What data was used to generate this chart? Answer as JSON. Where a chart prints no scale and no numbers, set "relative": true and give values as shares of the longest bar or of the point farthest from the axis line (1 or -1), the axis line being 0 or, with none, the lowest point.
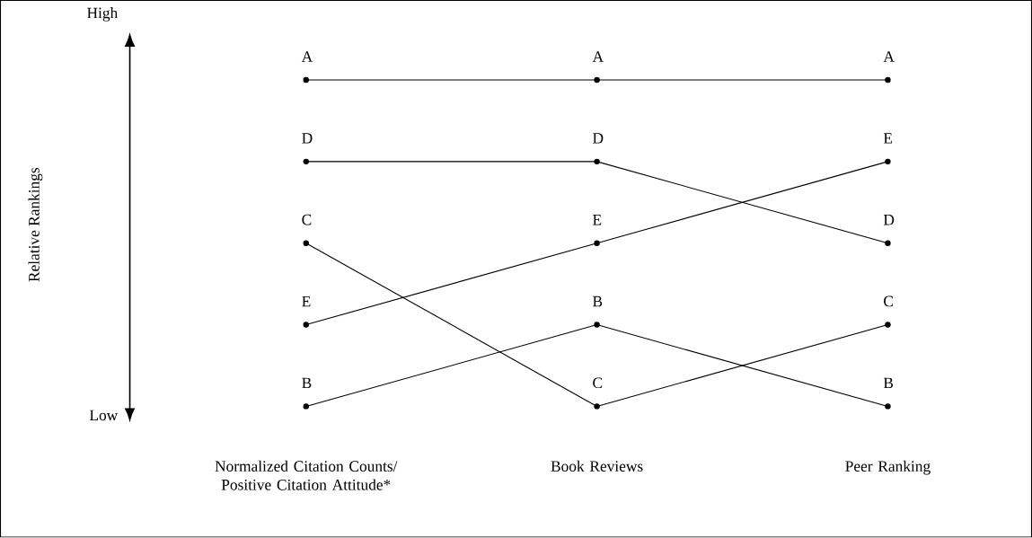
{
  "chart_data": {
    "type": "line",
    "relative": true,
    "annotations": [
      "High",
      "Low",
      "Relative Rankings"
    ],
    "categories": [
      "Normalized Citation Counts/ Positive Citation Attitude*",
      "Book Reviews",
      "Peer Ranking"
    ],
    "marker": "circle",
    "line_style": "solid",
    "series": [
      {
        "name": "A",
        "color": "#000000",
        "values": [
          1,
          1,
          1
        ]
      },
      {
        "name": "D",
        "color": "#000000",
        "values": [
          0.75,
          0.75,
          0.5
        ]
      },
      {
        "name": "C",
        "color": "#000000",
        "values": [
          0.5,
          0,
          0.25
        ]
      },
      {
        "name": "E",
        "color": "#000000",
        "values": [
          0.25,
          0.5,
          0.75
        ]
      },
      {
        "name": "B",
        "color": "#000000",
        "values": [
          0,
          0.25,
          0
        ]
      }
    ]
  }
}
